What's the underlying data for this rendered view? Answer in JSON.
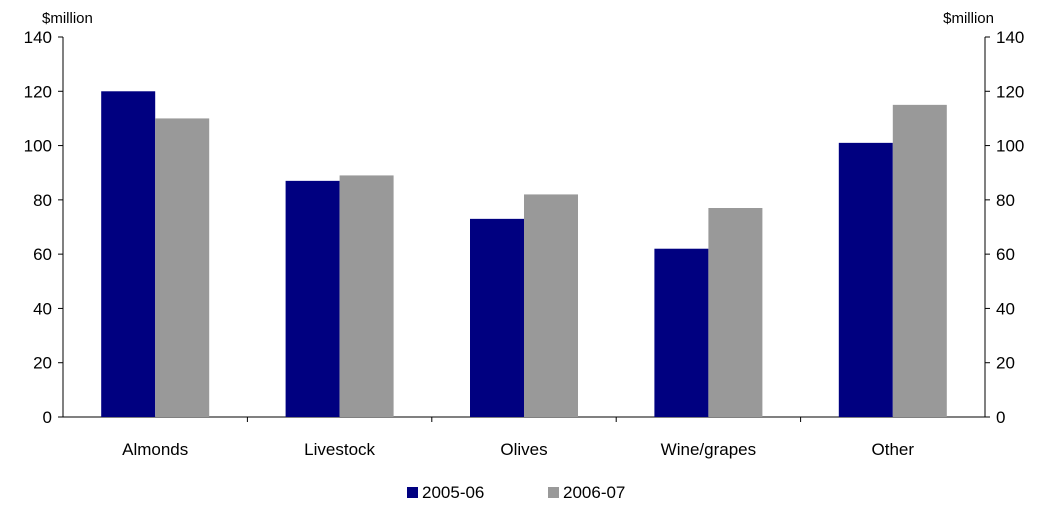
{
  "chart_data": {
    "type": "bar",
    "categories": [
      "Almonds",
      "Livestock",
      "Olives",
      "Wine/grapes",
      "Other"
    ],
    "series": [
      {
        "name": "2005-06",
        "values": [
          120,
          87,
          73,
          62,
          101
        ],
        "color": "#000080"
      },
      {
        "name": "2006-07",
        "values": [
          110,
          89,
          82,
          77,
          115
        ],
        "color": "#999999"
      }
    ],
    "ylabel_left": "$million",
    "ylabel_right": "$million",
    "ylim": [
      0,
      140
    ],
    "yticks": [
      0,
      20,
      40,
      60,
      80,
      100,
      120,
      140
    ],
    "grid": false,
    "legend_position": "bottom"
  }
}
